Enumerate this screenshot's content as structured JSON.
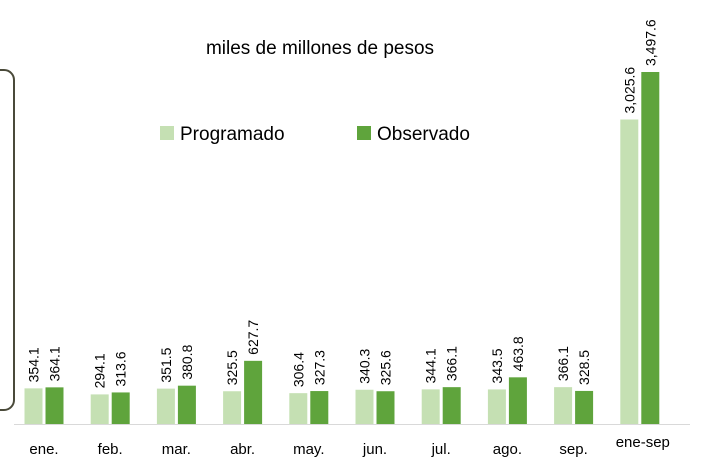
{
  "chart_data": {
    "type": "bar",
    "title": "miles de millones de pesos",
    "categories": [
      "ene.",
      "feb.",
      "mar.",
      "abr.",
      "may.",
      "jun.",
      "jul.",
      "ago.",
      "sep.",
      "ene-sep"
    ],
    "series": [
      {
        "name": "Programado",
        "color": "#c5e0b3",
        "values": [
          354.1,
          294.1,
          351.5,
          325.5,
          306.4,
          340.3,
          344.1,
          343.5,
          366.1,
          3025.6
        ],
        "value_labels": [
          "354.1",
          "294.1",
          "351.5",
          "325.5",
          "306.4",
          "340.3",
          "344.1",
          "343.5",
          "366.1",
          "3,025.6"
        ]
      },
      {
        "name": "Observado",
        "color": "#5fa43c",
        "values": [
          364.1,
          313.6,
          380.8,
          627.7,
          327.3,
          325.6,
          366.1,
          463.8,
          328.5,
          3497.6
        ],
        "value_labels": [
          "364.1",
          "313.6",
          "380.8",
          "627.7",
          "327.3",
          "325.6",
          "366.1",
          "463.8",
          "328.5",
          "3,497.6"
        ]
      }
    ]
  }
}
